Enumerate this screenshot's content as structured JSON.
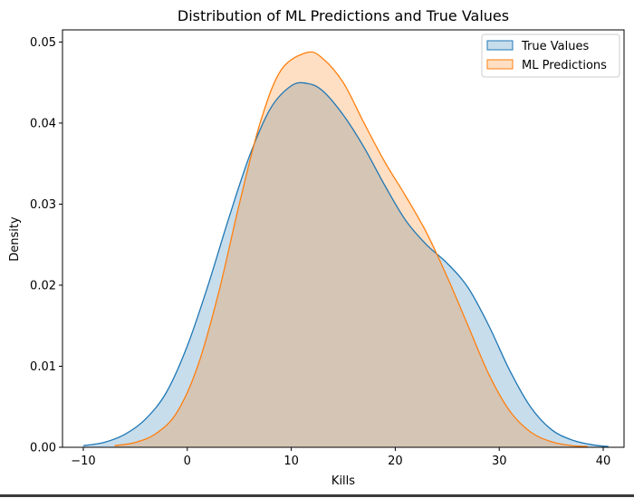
{
  "chart_data": {
    "type": "area",
    "title": "Distribution of ML Predictions and True Values",
    "xlabel": "Kills",
    "ylabel": "Density",
    "xlim": [
      -12,
      42
    ],
    "ylim": [
      0,
      0.0515
    ],
    "xticks": [
      -10,
      0,
      10,
      20,
      30,
      40
    ],
    "xtick_labels": [
      "−10",
      "0",
      "10",
      "20",
      "30",
      "40"
    ],
    "yticks": [
      0,
      0.01,
      0.02,
      0.03,
      0.04,
      0.05
    ],
    "ytick_labels": [
      "0.00",
      "0.01",
      "0.02",
      "0.03",
      "0.04",
      "0.05"
    ],
    "grid": false,
    "legend_position": "top-right",
    "series": [
      {
        "name": "True Values",
        "color": "#1f77b4",
        "points": [
          [
            -10,
            0.0002
          ],
          [
            -8,
            0.0006
          ],
          [
            -6,
            0.0016
          ],
          [
            -4,
            0.0035
          ],
          [
            -2,
            0.0068
          ],
          [
            0,
            0.0125
          ],
          [
            2,
            0.02
          ],
          [
            4,
            0.0283
          ],
          [
            6,
            0.036
          ],
          [
            8,
            0.0418
          ],
          [
            10,
            0.0446
          ],
          [
            11.5,
            0.0449
          ],
          [
            13,
            0.044
          ],
          [
            15,
            0.041
          ],
          [
            17,
            0.037
          ],
          [
            19,
            0.0323
          ],
          [
            21,
            0.028
          ],
          [
            23,
            0.025
          ],
          [
            25,
            0.0227
          ],
          [
            27,
            0.0197
          ],
          [
            29,
            0.015
          ],
          [
            31,
            0.0095
          ],
          [
            33,
            0.005
          ],
          [
            35,
            0.0022
          ],
          [
            37,
            0.0009
          ],
          [
            39,
            0.0003
          ],
          [
            40.5,
            0.0001
          ]
        ]
      },
      {
        "name": "ML Predictions",
        "color": "#ff7f0e",
        "points": [
          [
            -7,
            0.0002
          ],
          [
            -5,
            0.0006
          ],
          [
            -3,
            0.0017
          ],
          [
            -1,
            0.0043
          ],
          [
            1,
            0.01
          ],
          [
            3,
            0.019
          ],
          [
            5,
            0.03
          ],
          [
            7,
            0.04
          ],
          [
            9,
            0.0465
          ],
          [
            11.5,
            0.0487
          ],
          [
            13,
            0.048
          ],
          [
            15,
            0.045
          ],
          [
            17,
            0.04
          ],
          [
            19,
            0.0352
          ],
          [
            21,
            0.031
          ],
          [
            23,
            0.0265
          ],
          [
            25,
            0.021
          ],
          [
            27,
            0.015
          ],
          [
            29,
            0.009
          ],
          [
            31,
            0.0045
          ],
          [
            33,
            0.0019
          ],
          [
            35,
            0.0007
          ],
          [
            37,
            0.0002
          ],
          [
            38.5,
            0.0001
          ]
        ]
      }
    ]
  }
}
